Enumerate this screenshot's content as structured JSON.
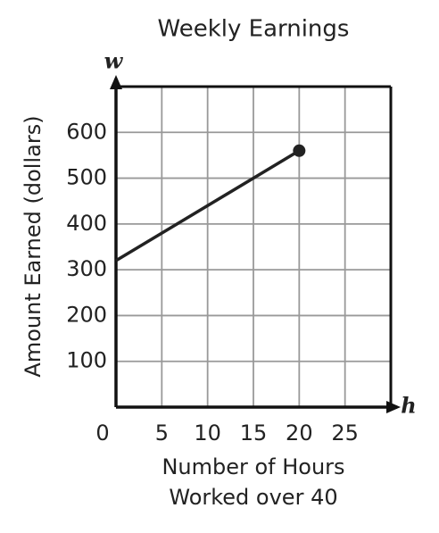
{
  "chart_data": {
    "type": "line",
    "title": "Weekly Earnings",
    "xlabel": [
      "Number of Hours",
      "Worked over 40"
    ],
    "ylabel": "Amount Earned (dollars)",
    "x_variable": "h",
    "y_variable": "w",
    "series": [
      {
        "name": "Earnings",
        "color": "#222222",
        "x": [
          0,
          20
        ],
        "values": [
          320,
          560
        ]
      }
    ],
    "xlim": [
      0,
      30
    ],
    "xticks": [
      0,
      5,
      10,
      15,
      20,
      25
    ],
    "ylim": [
      0,
      700
    ],
    "yticks": [
      100,
      200,
      300,
      400,
      500,
      600
    ],
    "grid": true
  }
}
